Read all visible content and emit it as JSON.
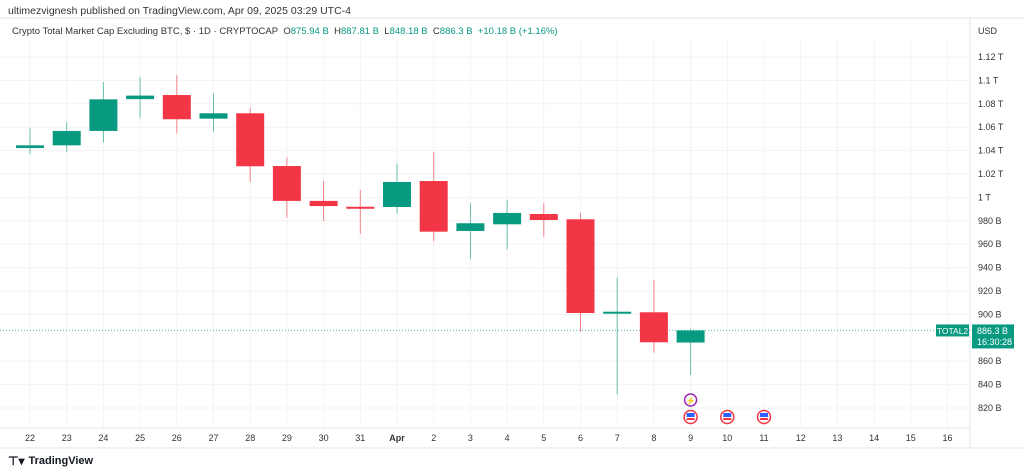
{
  "header": {
    "published": "ultimezvignesh published on TradingView.com, Apr 09, 2025 03:29 UTC-4"
  },
  "legend": {
    "title": "Crypto Total Market Cap Excluding BTC, $ · 1D · CRYPTOCAP",
    "o_label": "O",
    "o": "875.94 B",
    "h_label": "H",
    "h": "887.81 B",
    "l_label": "L",
    "l": "848.18 B",
    "c_label": "C",
    "c": "886.3 B",
    "change": "+10.18 B (+1.16%)"
  },
  "currency": "USD",
  "price_tag": {
    "symbol": "TOTAL2",
    "price": "886.3 B",
    "countdown": "16:30:28"
  },
  "footer": {
    "brand": "TradingView"
  },
  "colors": {
    "up": "#089981",
    "down": "#f23645",
    "event": "#9c27b0",
    "flag": "#f23645"
  },
  "chart_data": {
    "type": "candlestick",
    "title": "Crypto Total Market Cap Excluding BTC",
    "ylabel": "USD (B)",
    "ylim": [
      810,
      1128
    ],
    "y_ticks": [
      {
        "v": 1120,
        "label": "1.12 T"
      },
      {
        "v": 1100,
        "label": "1.1 T"
      },
      {
        "v": 1080,
        "label": "1.08 T"
      },
      {
        "v": 1060,
        "label": "1.06 T"
      },
      {
        "v": 1040,
        "label": "1.04 T"
      },
      {
        "v": 1020,
        "label": "1.02 T"
      },
      {
        "v": 1000,
        "label": "1 T"
      },
      {
        "v": 980,
        "label": "980 B"
      },
      {
        "v": 960,
        "label": "960 B"
      },
      {
        "v": 940,
        "label": "940 B"
      },
      {
        "v": 920,
        "label": "920 B"
      },
      {
        "v": 900,
        "label": "900 B"
      },
      {
        "v": 860,
        "label": "860 B"
      },
      {
        "v": 840,
        "label": "840 B"
      },
      {
        "v": 820,
        "label": "820 B"
      }
    ],
    "x_ticks": [
      "22",
      "23",
      "24",
      "25",
      "26",
      "27",
      "28",
      "29",
      "30",
      "31",
      "Apr",
      "2",
      "3",
      "4",
      "5",
      "6",
      "7",
      "8",
      "9",
      "10",
      "11",
      "12",
      "13",
      "14",
      "15",
      "16"
    ],
    "candles": [
      {
        "d": "Mar 22",
        "o": 1042.2,
        "h": 1059,
        "l": 1037,
        "c": 1044.5
      },
      {
        "d": "Mar 23",
        "o": 1044.5,
        "h": 1064.4,
        "l": 1038.8,
        "c": 1056.8
      },
      {
        "d": "Mar 24",
        "o": 1056.8,
        "h": 1098.6,
        "l": 1046.8,
        "c": 1083.8
      },
      {
        "d": "Mar 25",
        "o": 1084,
        "h": 1102.6,
        "l": 1068,
        "c": 1087
      },
      {
        "d": "Mar 26",
        "o": 1087.5,
        "h": 1104.4,
        "l": 1054.8,
        "c": 1066.8
      },
      {
        "d": "Mar 27",
        "o": 1067.3,
        "h": 1088.6,
        "l": 1056.2,
        "c": 1071.9
      },
      {
        "d": "Mar 28",
        "o": 1071.9,
        "h": 1076.7,
        "l": 1013.2,
        "c": 1026.6
      },
      {
        "d": "Mar 29",
        "o": 1026.8,
        "h": 1034.3,
        "l": 982.6,
        "c": 997
      },
      {
        "d": "Mar 30",
        "o": 997,
        "h": 1014,
        "l": 979.8,
        "c": 992.6
      },
      {
        "d": "Mar 31",
        "o": 992,
        "h": 1006.3,
        "l": 969,
        "c": 991.2
      },
      {
        "d": "Apr 1",
        "o": 991.8,
        "h": 1029,
        "l": 986,
        "c": 1013.2
      },
      {
        "d": "Apr 2",
        "o": 1014,
        "h": 1038.5,
        "l": 962.5,
        "c": 970.7
      },
      {
        "d": "Apr 3",
        "o": 971.3,
        "h": 995,
        "l": 947.6,
        "c": 977.9
      },
      {
        "d": "Apr 4",
        "o": 977,
        "h": 997.5,
        "l": 955.6,
        "c": 986.7
      },
      {
        "d": "Apr 5",
        "o": 985.8,
        "h": 995,
        "l": 966.4,
        "c": 980.7
      },
      {
        "d": "Apr 6",
        "o": 981.3,
        "h": 987,
        "l": 885.2,
        "c": 901.2
      },
      {
        "d": "Apr 7",
        "o": 901.2,
        "h": 931.5,
        "l": 831.7,
        "c": 902.3
      },
      {
        "d": "Apr 8",
        "o": 901.8,
        "h": 929.4,
        "l": 867.3,
        "c": 876.2
      },
      {
        "d": "Apr 9",
        "o": 875.94,
        "h": 887.81,
        "l": 848.18,
        "c": 886.3
      }
    ],
    "last_price": 886.3,
    "events": [
      {
        "day_index": 18,
        "type": "lightning"
      },
      {
        "day_index": 18,
        "type": "us-flag"
      },
      {
        "day_index": 19,
        "type": "us-flag"
      },
      {
        "day_index": 20,
        "type": "us-flag"
      }
    ]
  }
}
